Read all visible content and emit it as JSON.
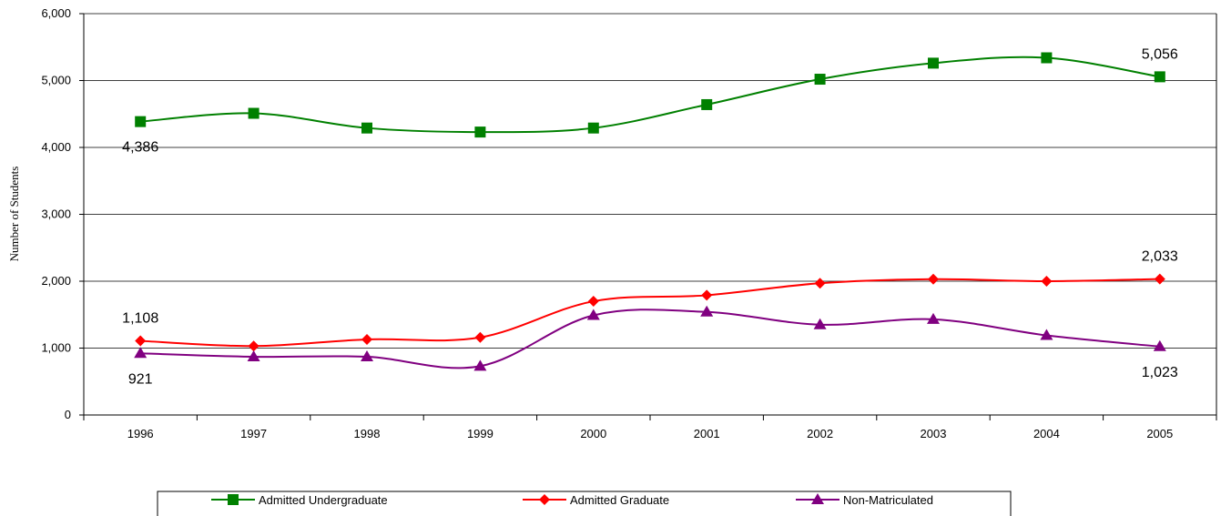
{
  "chart_data": {
    "type": "line",
    "title": "",
    "xlabel": "",
    "ylabel": "Number of Students",
    "ylim": [
      0,
      6000
    ],
    "yticks": [
      "0",
      "1,000",
      "2,000",
      "3,000",
      "4,000",
      "5,000",
      "6,000"
    ],
    "categories": [
      "1996",
      "1997",
      "1998",
      "1999",
      "2000",
      "2001",
      "2002",
      "2003",
      "2004",
      "2005"
    ],
    "grid": true,
    "legend_position": "bottom",
    "series": [
      {
        "name": "Admitted Undergraduate",
        "color": "#008000",
        "marker": "square",
        "values": [
          4386,
          4510,
          4290,
          4230,
          4290,
          4640,
          5020,
          5260,
          5340,
          5056
        ]
      },
      {
        "name": "Admitted Graduate",
        "color": "#ff0000",
        "marker": "diamond",
        "values": [
          1108,
          1030,
          1130,
          1160,
          1700,
          1790,
          1970,
          2030,
          2000,
          2033
        ]
      },
      {
        "name": "Non-Matriculated",
        "color": "#800080",
        "marker": "triangle",
        "values": [
          921,
          870,
          870,
          730,
          1490,
          1540,
          1350,
          1430,
          1190,
          1023
        ]
      }
    ],
    "data_labels": [
      {
        "text": "4,386",
        "series": 0,
        "index": 0,
        "position": "below"
      },
      {
        "text": "5,056",
        "series": 0,
        "index": 9,
        "position": "above"
      },
      {
        "text": "1,108",
        "series": 1,
        "index": 0,
        "position": "above"
      },
      {
        "text": "2,033",
        "series": 1,
        "index": 9,
        "position": "above"
      },
      {
        "text": "921",
        "series": 2,
        "index": 0,
        "position": "below"
      },
      {
        "text": "1,023",
        "series": 2,
        "index": 9,
        "position": "below"
      }
    ]
  }
}
